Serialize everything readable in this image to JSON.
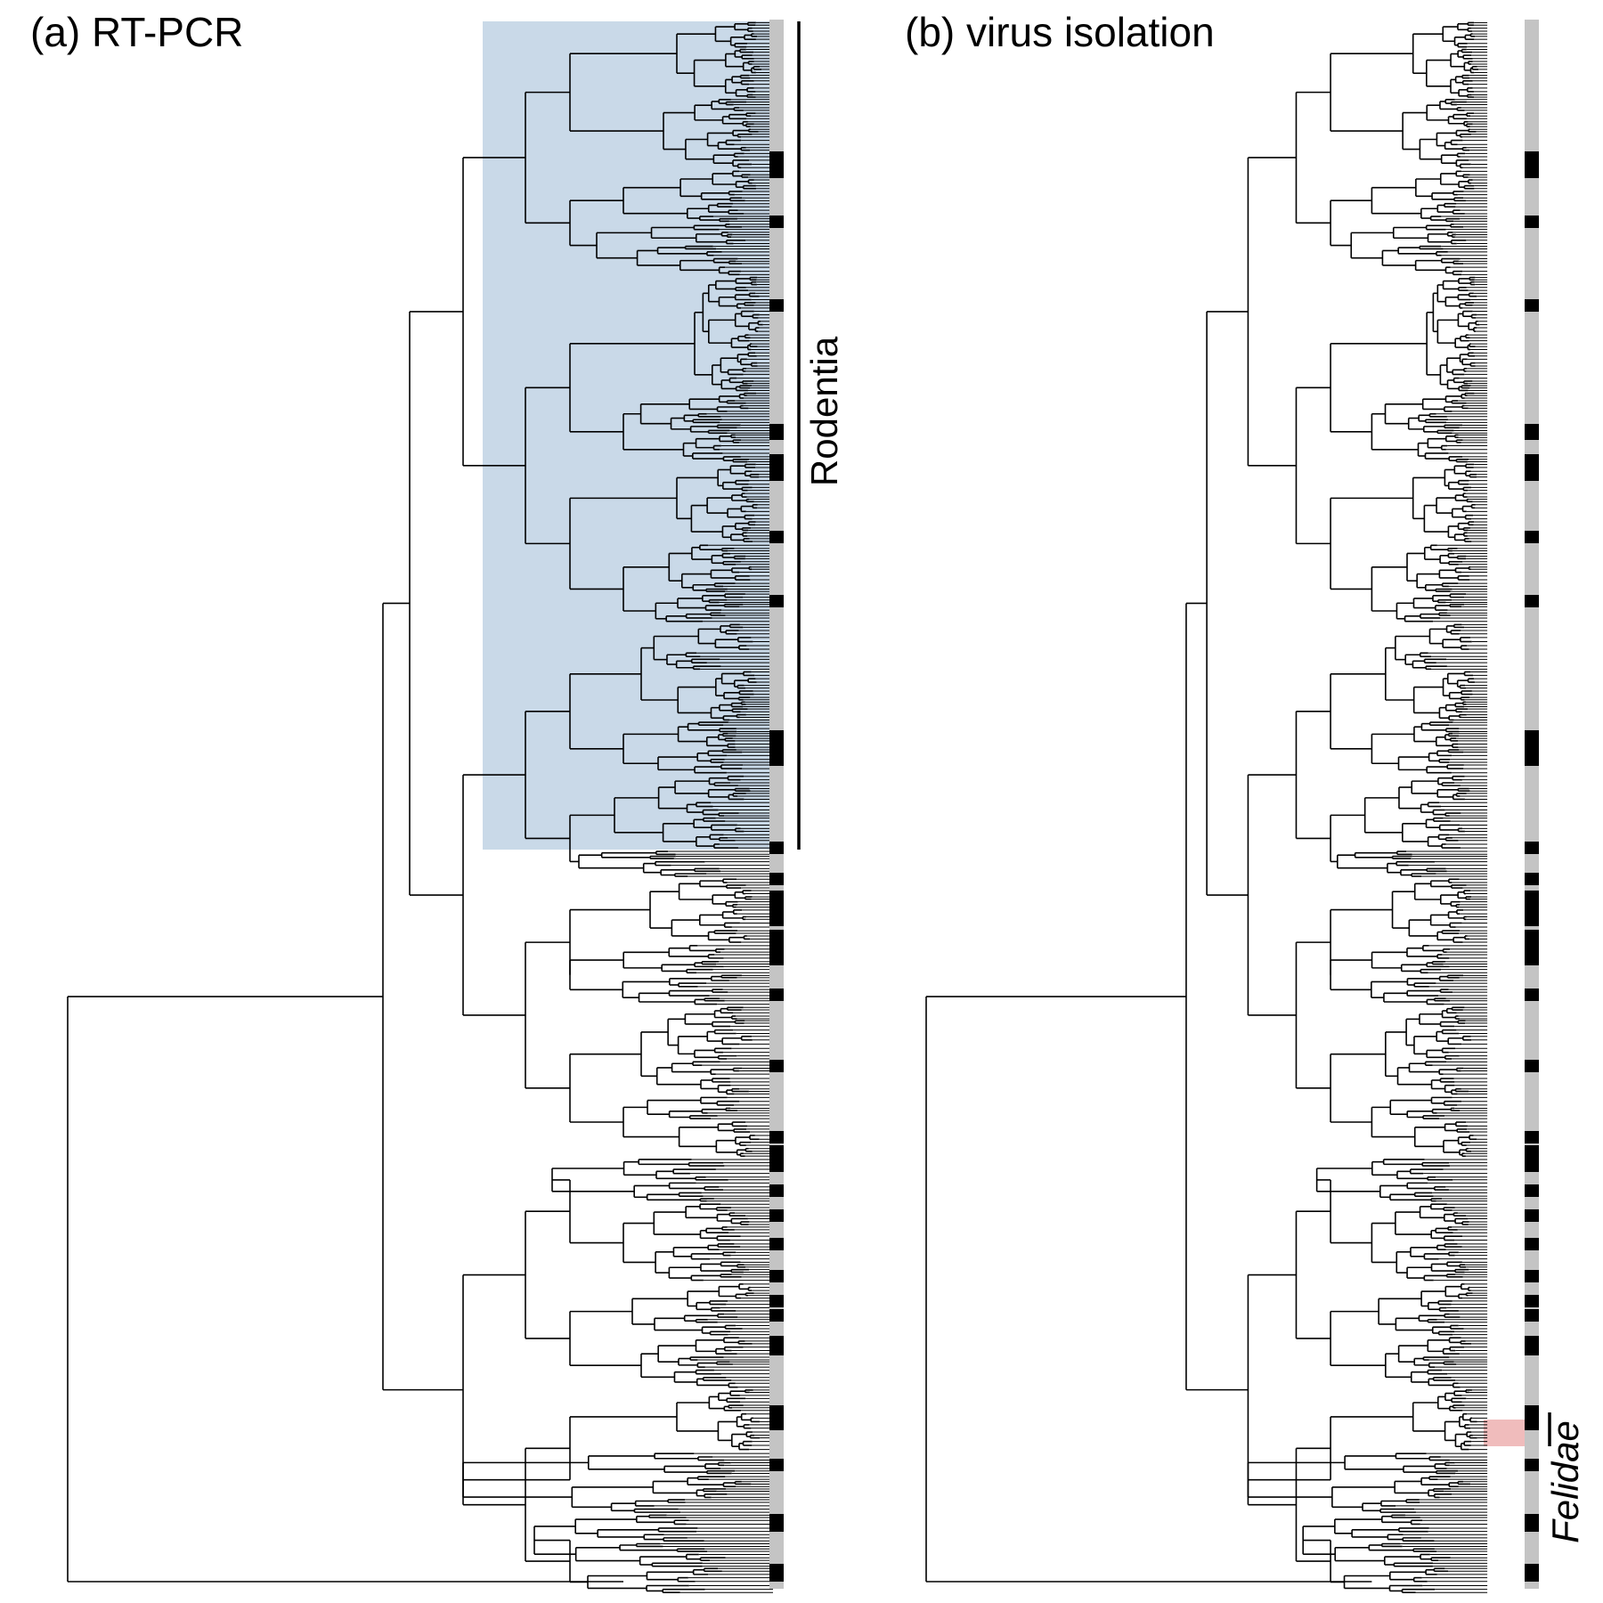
{
  "figure": {
    "panels": [
      {
        "id": "a",
        "title": "(a) RT-PCR",
        "highlight": {
          "label": "Rodentia",
          "color": "#c9d9e8",
          "italic": false
        }
      },
      {
        "id": "b",
        "title": "(b) virus isolation",
        "highlight": {
          "label": "Felidae",
          "color": "#f2c9c9",
          "italic": true
        }
      }
    ],
    "colors": {
      "tip_strip_base": "#c4c4c4",
      "tip_strip_positive": "#000000",
      "branch": "#000000"
    },
    "icons": [
      "phylogenetic-tree",
      "tip-status-strip"
    ]
  }
}
